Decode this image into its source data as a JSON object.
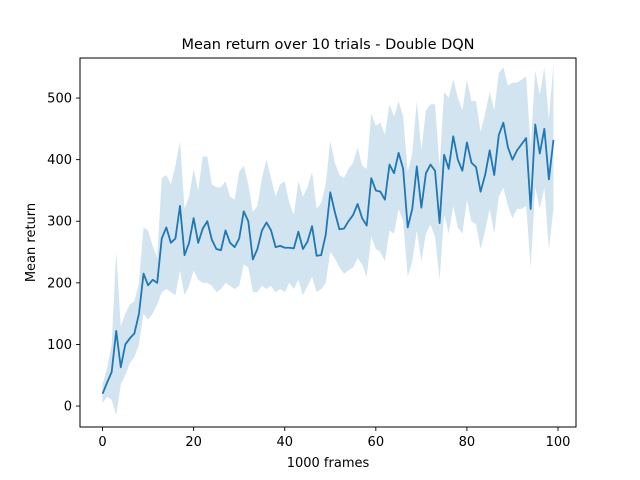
{
  "chart_data": {
    "type": "line",
    "title": "Mean return over 10 trials - Double DQN",
    "xlabel": "1000 frames",
    "ylabel": "Mean return",
    "xlim": [
      -4.95,
      103.95
    ],
    "ylim": [
      -34,
      565
    ],
    "xticks": [
      0,
      20,
      40,
      60,
      80,
      100
    ],
    "yticks": [
      0,
      100,
      200,
      300,
      400,
      500
    ],
    "grid": false,
    "colors": {
      "line": "#1f77b4",
      "band": "#1f77b4"
    },
    "series": [
      {
        "x": [
          0,
          1,
          2,
          3,
          4,
          5,
          6,
          7,
          8,
          9,
          10,
          11,
          12,
          13,
          14,
          15,
          16,
          17,
          18,
          19,
          20,
          21,
          22,
          23,
          24,
          25,
          26,
          27,
          28,
          29,
          30,
          31,
          32,
          33,
          34,
          35,
          36,
          37,
          38,
          39,
          40,
          41,
          42,
          43,
          44,
          45,
          46,
          47,
          48,
          49,
          50,
          51,
          52,
          53,
          54,
          55,
          56,
          57,
          58,
          59,
          60,
          61,
          62,
          63,
          64,
          65,
          66,
          67,
          68,
          69,
          70,
          71,
          72,
          73,
          74,
          75,
          76,
          77,
          78,
          79,
          80,
          81,
          82,
          83,
          84,
          85,
          86,
          87,
          88,
          89,
          90,
          91,
          92,
          93,
          94,
          95,
          96,
          97,
          98,
          99
        ],
        "mean": [
          20,
          38,
          55,
          122,
          63,
          100,
          110,
          118,
          150,
          215,
          196,
          205,
          200,
          272,
          290,
          265,
          272,
          325,
          245,
          265,
          305,
          265,
          288,
          300,
          270,
          255,
          253,
          285,
          265,
          258,
          272,
          316,
          300,
          238,
          255,
          285,
          298,
          285,
          258,
          260,
          257,
          257,
          256,
          283,
          255,
          267,
          292,
          244,
          245,
          278,
          347,
          315,
          287,
          288,
          300,
          310,
          328,
          305,
          293,
          370,
          350,
          348,
          335,
          392,
          378,
          411,
          385,
          290,
          320,
          389,
          322,
          378,
          392,
          382,
          297,
          408,
          385,
          438,
          400,
          382,
          428,
          395,
          388,
          348,
          375,
          415,
          375,
          440,
          460,
          420,
          400,
          415,
          425,
          435,
          320,
          457,
          410,
          450,
          368,
          432
        ],
        "upper": [
          35,
          62,
          100,
          250,
          130,
          150,
          165,
          170,
          200,
          290,
          285,
          260,
          240,
          370,
          375,
          360,
          390,
          430,
          320,
          340,
          385,
          350,
          405,
          405,
          360,
          355,
          355,
          365,
          340,
          335,
          380,
          390,
          360,
          315,
          325,
          370,
          400,
          370,
          340,
          360,
          365,
          330,
          310,
          365,
          340,
          355,
          380,
          320,
          330,
          360,
          430,
          395,
          375,
          370,
          385,
          395,
          420,
          390,
          385,
          475,
          455,
          460,
          440,
          490,
          470,
          495,
          470,
          380,
          410,
          495,
          415,
          480,
          490,
          490,
          390,
          510,
          500,
          530,
          500,
          480,
          530,
          495,
          495,
          445,
          475,
          510,
          480,
          540,
          550,
          520,
          525,
          525,
          530,
          535,
          420,
          545,
          505,
          550,
          465,
          555
        ],
        "lower": [
          5,
          15,
          10,
          -15,
          35,
          50,
          70,
          80,
          100,
          150,
          140,
          150,
          165,
          185,
          190,
          185,
          180,
          220,
          180,
          195,
          220,
          205,
          200,
          200,
          195,
          185,
          190,
          200,
          195,
          190,
          195,
          230,
          225,
          185,
          185,
          195,
          190,
          195,
          185,
          190,
          185,
          200,
          190,
          205,
          180,
          195,
          210,
          185,
          190,
          200,
          250,
          240,
          225,
          215,
          220,
          225,
          240,
          230,
          210,
          275,
          255,
          250,
          235,
          285,
          280,
          320,
          300,
          210,
          235,
          285,
          235,
          280,
          295,
          275,
          205,
          310,
          280,
          325,
          290,
          280,
          335,
          300,
          295,
          255,
          285,
          320,
          280,
          340,
          355,
          325,
          305,
          320,
          320,
          325,
          225,
          355,
          320,
          355,
          255,
          320
        ]
      }
    ]
  }
}
